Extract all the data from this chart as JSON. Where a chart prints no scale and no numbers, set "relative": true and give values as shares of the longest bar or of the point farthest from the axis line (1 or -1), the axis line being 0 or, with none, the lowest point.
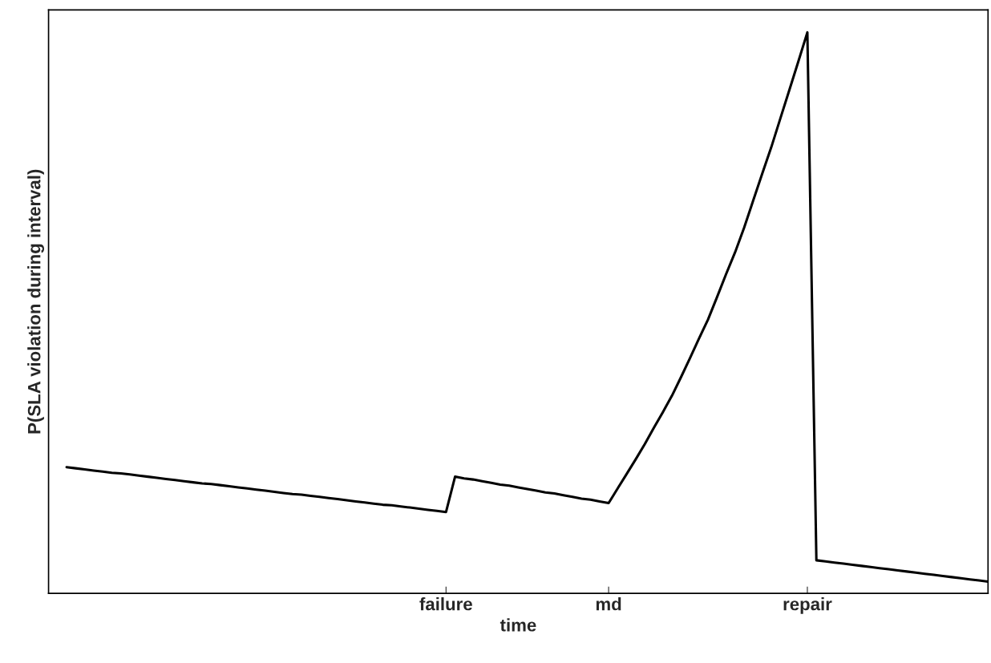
{
  "chart_data": {
    "type": "line",
    "xlabel": "time",
    "ylabel": "P(SLA violation during interval)",
    "relative": true,
    "categories": [
      null,
      null,
      null,
      null,
      null,
      null,
      null,
      null,
      null,
      null,
      null,
      null,
      null,
      null,
      null,
      null,
      null,
      null,
      null,
      null,
      null,
      null,
      null,
      null,
      null,
      null,
      null,
      null,
      null,
      null,
      null,
      null,
      null,
      null,
      null,
      null,
      null,
      null,
      null,
      null,
      null,
      null,
      "failure",
      null,
      null,
      null,
      null,
      null,
      null,
      null,
      null,
      null,
      null,
      null,
      null,
      null,
      null,
      null,
      null,
      null,
      "md",
      null,
      null,
      null,
      null,
      null,
      null,
      null,
      null,
      null,
      null,
      null,
      null,
      null,
      null,
      null,
      null,
      null,
      null,
      null,
      null,
      null,
      "repair",
      null,
      null,
      null,
      null,
      null,
      null,
      null,
      null,
      null,
      null,
      null,
      null,
      null,
      null,
      null,
      null,
      null,
      null,
      null,
      null
    ],
    "series": [
      {
        "color": "#000000",
        "values": [
          0.225,
          0.223,
          0.221,
          0.219,
          0.217,
          0.215,
          0.214,
          0.212,
          0.21,
          0.208,
          0.206,
          0.204,
          0.202,
          0.2,
          0.198,
          0.196,
          0.195,
          0.193,
          0.191,
          0.189,
          0.187,
          0.185,
          0.183,
          0.181,
          0.179,
          0.177,
          0.176,
          0.174,
          0.172,
          0.17,
          0.168,
          0.166,
          0.164,
          0.162,
          0.16,
          0.158,
          0.157,
          0.155,
          0.153,
          0.151,
          0.149,
          0.147,
          0.145,
          0.208,
          0.205,
          0.203,
          0.2,
          0.197,
          0.194,
          0.192,
          0.189,
          0.186,
          0.183,
          0.18,
          0.178,
          0.175,
          0.172,
          0.169,
          0.167,
          0.164,
          0.161,
          0.187,
          0.213,
          0.239,
          0.266,
          0.295,
          0.323,
          0.352,
          0.385,
          0.419,
          0.454,
          0.488,
          0.528,
          0.569,
          0.608,
          0.652,
          0.7,
          0.748,
          0.795,
          0.846,
          0.897,
          0.948,
          1.0,
          0.059,
          0.057,
          0.055,
          0.053,
          0.051,
          0.049,
          0.047,
          0.045,
          0.043,
          0.041,
          0.039,
          0.037,
          0.035,
          0.033,
          0.031,
          0.029,
          0.027,
          0.025,
          0.023,
          0.021
        ]
      }
    ],
    "grid": false,
    "legend": false
  }
}
